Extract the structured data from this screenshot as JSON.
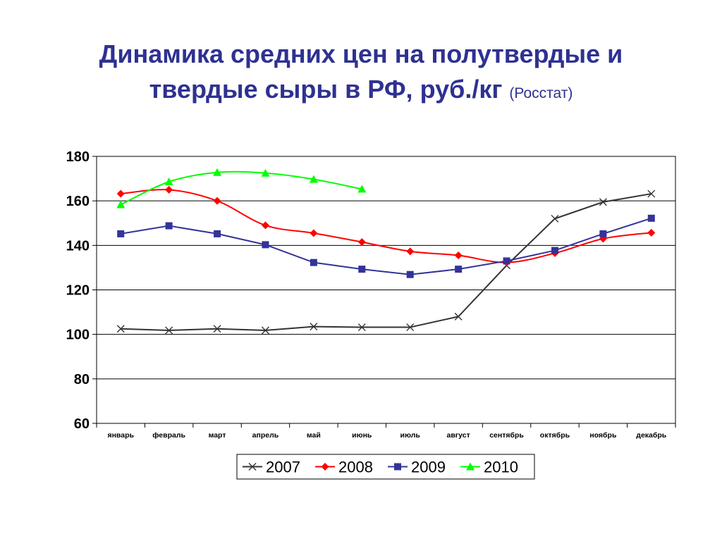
{
  "title": {
    "main": "Динамика средних цен на полутвердые и твердые сыры в РФ, руб./кг",
    "source": "(Росстат)"
  },
  "chart_data": {
    "type": "line",
    "categories": [
      "январь",
      "февраль",
      "март",
      "апрель",
      "май",
      "июнь",
      "июль",
      "август",
      "сентябрь",
      "октябрь",
      "ноябрь",
      "декабрь"
    ],
    "ylim": [
      60,
      180
    ],
    "yticks": [
      60,
      80,
      100,
      120,
      140,
      160,
      180
    ],
    "grid": true,
    "legend_position": "bottom",
    "series": [
      {
        "name": "2007",
        "color": "#333333",
        "marker": "x",
        "values": [
          102.5,
          101.8,
          102.5,
          101.8,
          103.5,
          103.2,
          103.2,
          108,
          131,
          152,
          159.5,
          163.2
        ]
      },
      {
        "name": "2008",
        "color": "#FF0000",
        "marker": "diamond",
        "values": [
          163.2,
          165,
          160,
          149,
          145.5,
          141.5,
          137.3,
          135.5,
          132.3,
          136.5,
          143,
          145.7
        ]
      },
      {
        "name": "2009",
        "color": "#333399",
        "marker": "square",
        "values": [
          145.2,
          148.8,
          145.2,
          140.3,
          132.3,
          129.3,
          126.9,
          129.3,
          133,
          137.7,
          145.2,
          152.2
        ]
      },
      {
        "name": "2010",
        "color": "#00FF00",
        "marker": "triangle",
        "values": [
          158.3,
          168.6,
          172.8,
          172.5,
          169.7,
          165.3,
          null,
          null,
          null,
          null,
          null,
          null
        ]
      }
    ]
  }
}
